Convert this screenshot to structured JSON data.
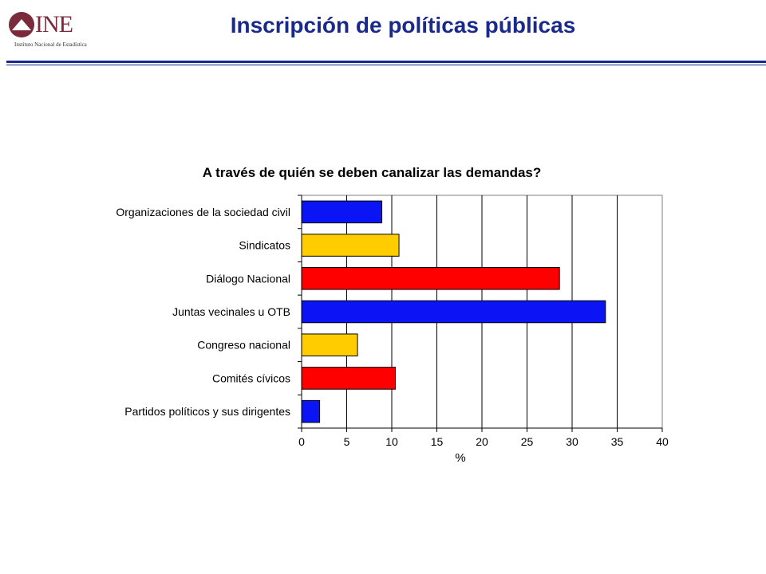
{
  "header": {
    "logo_text": "INE",
    "logo_subtitle": "Instituto Nacional de Estadística",
    "title": "Inscripción de políticas públicas"
  },
  "colors": {
    "title": "#1a2a8c",
    "logo": "#7a2a3a"
  },
  "chart_data": {
    "type": "bar",
    "orientation": "horizontal",
    "title": "A través de quién se deben canalizar las demandas?",
    "xlabel": "%",
    "ylabel": "",
    "xlim": [
      0,
      40
    ],
    "xticks": [
      0,
      5,
      10,
      15,
      20,
      25,
      30,
      35,
      40
    ],
    "grid": true,
    "categories": [
      "Organizaciones de la sociedad civil",
      "Sindicatos",
      "Diálogo Nacional",
      "Juntas vecinales u OTB",
      "Congreso nacional",
      "Comités cívicos",
      "Partidos políticos y sus dirigentes"
    ],
    "values": [
      8.9,
      10.8,
      28.6,
      33.7,
      6.2,
      10.4,
      2.0
    ],
    "bar_colors": [
      "#0a14f5",
      "#ffcc00",
      "#ff0000",
      "#0a14f5",
      "#ffcc00",
      "#ff0000",
      "#0a14f5"
    ]
  }
}
